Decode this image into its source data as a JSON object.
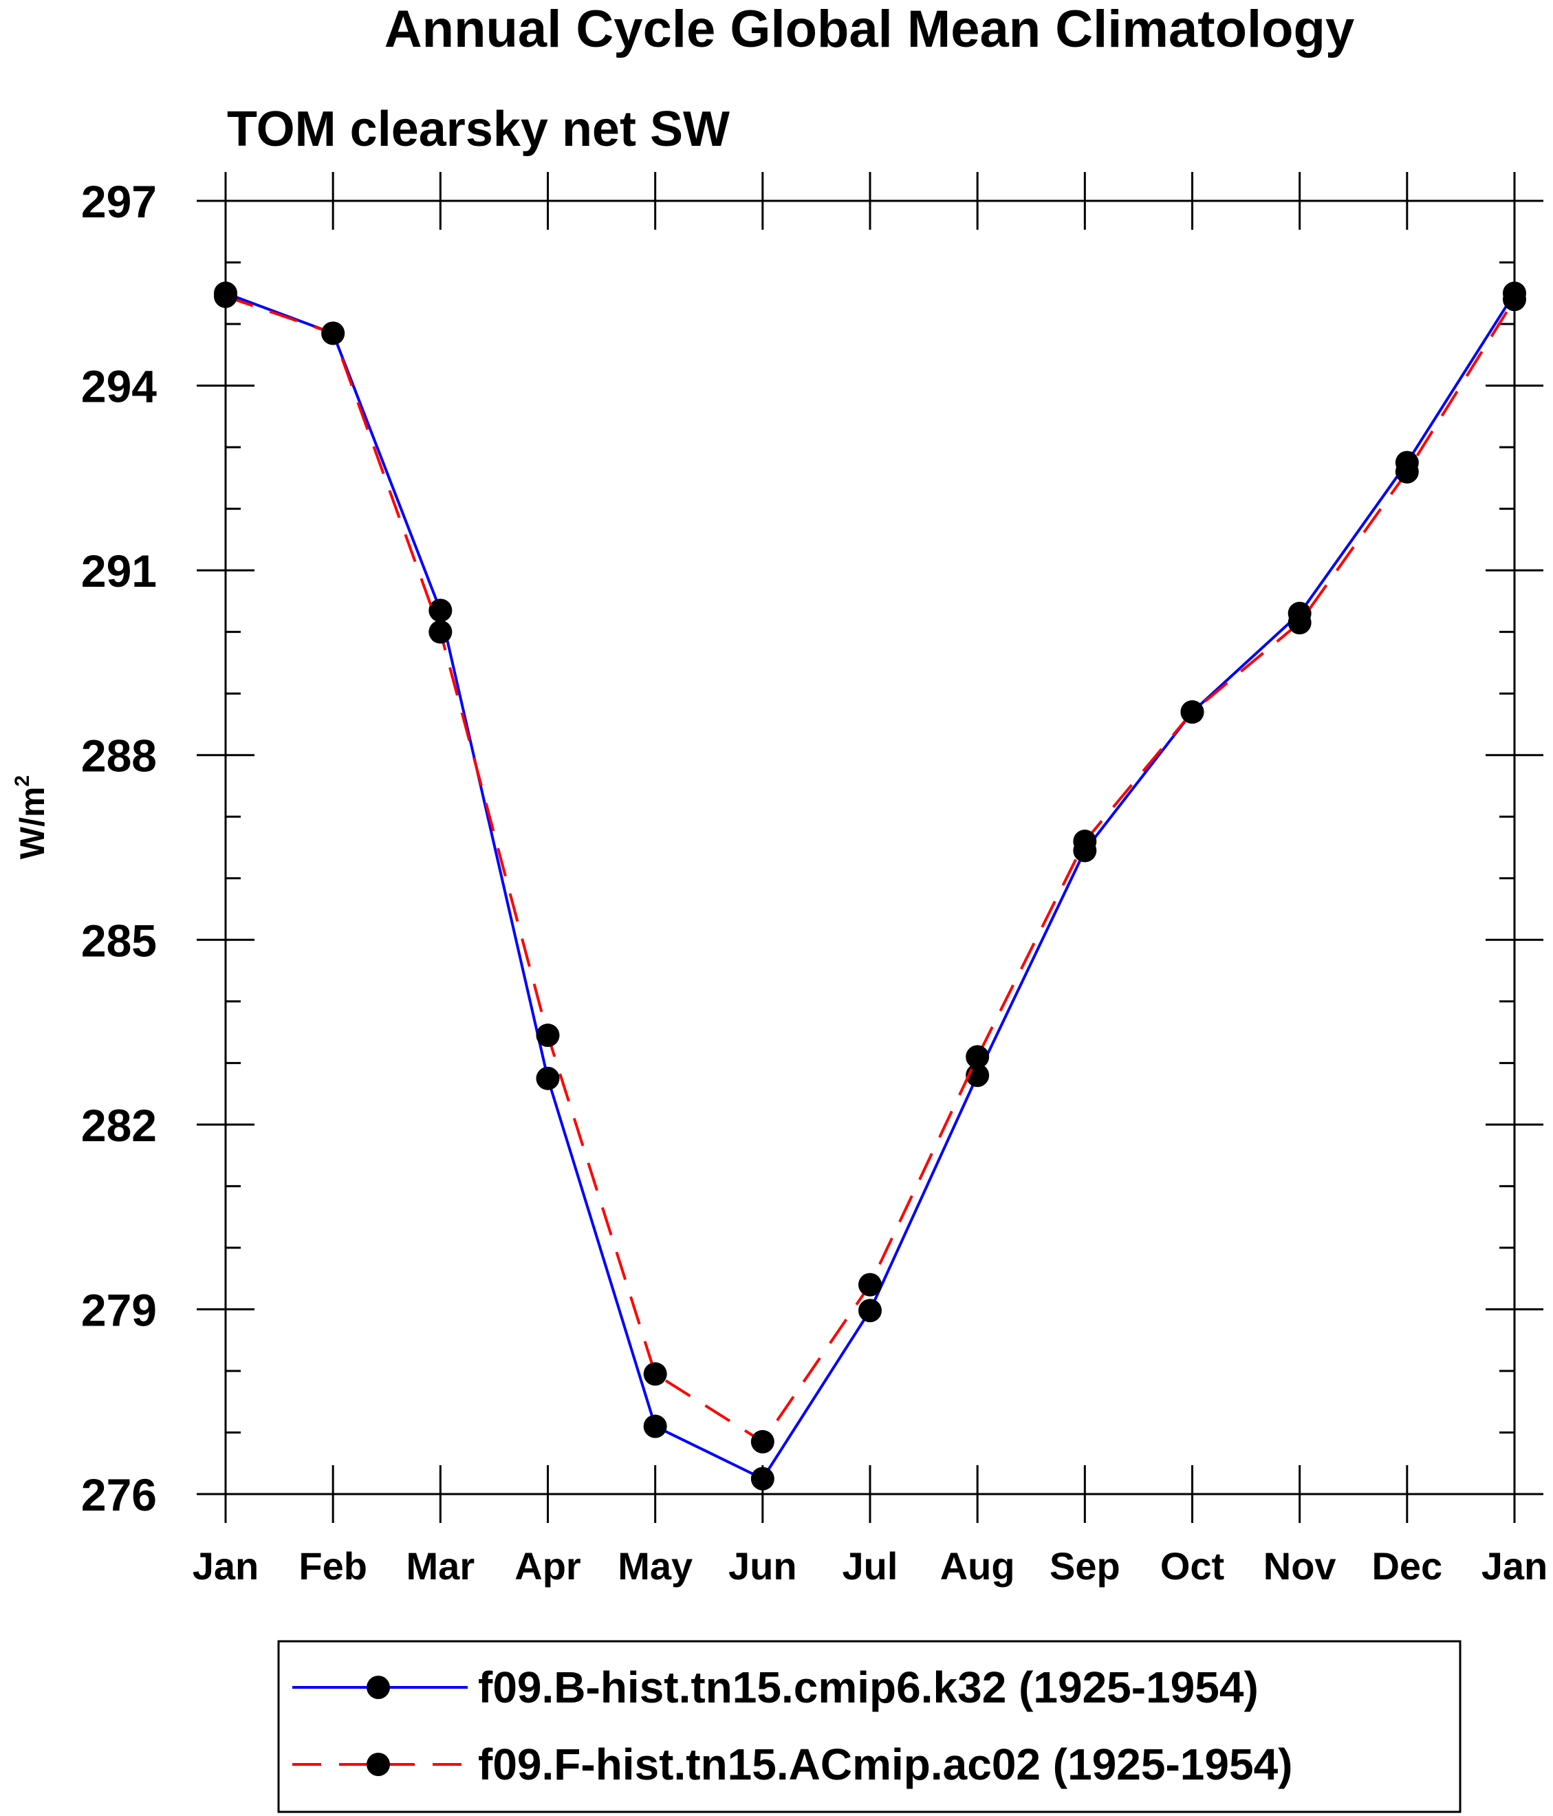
{
  "chart_data": {
    "type": "line",
    "title": "Annual Cycle Global Mean Climatology",
    "subtitle": "TOM clearsky net SW",
    "ylabel": "W/m",
    "ylabel_sup": "2",
    "categories": [
      "Jan",
      "Feb",
      "Mar",
      "Apr",
      "May",
      "Jun",
      "Jul",
      "Aug",
      "Sep",
      "Oct",
      "Nov",
      "Dec",
      "Jan"
    ],
    "ylim": [
      276,
      297
    ],
    "yticks": [
      276,
      279,
      282,
      285,
      288,
      291,
      294,
      297
    ],
    "ytick_labels": [
      "276",
      "279",
      "282",
      "285",
      "288",
      "291",
      "294",
      "297"
    ],
    "ytick_minor_step": 1,
    "grid": false,
    "legend_position": "bottom",
    "series": [
      {
        "name": "f09.B-hist.tn15.cmip6.k32 (1925-1954)",
        "color": "#0000ff",
        "line_style": "solid",
        "marker": "filled-circle",
        "values": [
          295.5,
          294.85,
          290.35,
          282.75,
          277.1,
          276.25,
          278.98,
          282.8,
          286.45,
          288.7,
          290.3,
          292.75,
          295.5
        ]
      },
      {
        "name": "f09.F-hist.tn15.ACmip.ac02 (1925-1954)",
        "color": "#ff0000",
        "line_style": "dashed",
        "marker": "filled-circle",
        "values": [
          295.45,
          294.85,
          290.0,
          283.45,
          277.95,
          276.85,
          279.4,
          283.1,
          286.6,
          288.7,
          290.15,
          292.6,
          295.4
        ]
      }
    ]
  }
}
